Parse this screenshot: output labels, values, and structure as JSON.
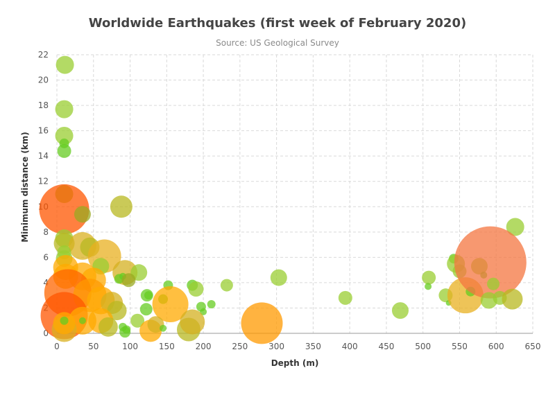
{
  "chart_data": {
    "type": "scatter",
    "title": "Worldwide Earthquakes (first week of February 2020)",
    "subtitle": "Source: US Geological Survey",
    "xlabel": "Depth (m)",
    "ylabel": "Minimum distance (km)",
    "xlim": [
      0,
      650
    ],
    "ylim": [
      0,
      22
    ],
    "xticks": [
      0,
      50,
      100,
      150,
      200,
      250,
      300,
      350,
      400,
      450,
      500,
      550,
      600,
      650
    ],
    "yticks": [
      0,
      2,
      4,
      6,
      8,
      10,
      12,
      14,
      16,
      18,
      20,
      22
    ],
    "grid": true,
    "points": [
      {
        "x": 11,
        "y": 21.2,
        "r": 13,
        "color": "#9acd32"
      },
      {
        "x": 10,
        "y": 17.7,
        "r": 13,
        "color": "#9acd32"
      },
      {
        "x": 10,
        "y": 15.6,
        "r": 13,
        "color": "#9acd32"
      },
      {
        "x": 10,
        "y": 15.0,
        "r": 7,
        "color": "#66cc22"
      },
      {
        "x": 10,
        "y": 14.4,
        "r": 10,
        "color": "#66cc22"
      },
      {
        "x": 626,
        "y": 8.4,
        "r": 13,
        "color": "#9acd32"
      },
      {
        "x": 10,
        "y": 11.0,
        "r": 13,
        "color": "#9acd32"
      },
      {
        "x": 10,
        "y": 9.8,
        "r": 36,
        "color": "#ff5500"
      },
      {
        "x": 35,
        "y": 9.4,
        "r": 12,
        "color": "#99aa22"
      },
      {
        "x": 88,
        "y": 10.0,
        "r": 16,
        "color": "#b8b820"
      },
      {
        "x": 10,
        "y": 7.5,
        "r": 13,
        "color": "#9acd32"
      },
      {
        "x": 10,
        "y": 7.1,
        "r": 15,
        "color": "#b8b820"
      },
      {
        "x": 35,
        "y": 6.9,
        "r": 20,
        "color": "#d9b020"
      },
      {
        "x": 45,
        "y": 6.8,
        "r": 14,
        "color": "#b8b820"
      },
      {
        "x": 10,
        "y": 6.4,
        "r": 10,
        "color": "#9acd32"
      },
      {
        "x": 10,
        "y": 5.9,
        "r": 12,
        "color": "#9acd32"
      },
      {
        "x": 65,
        "y": 6.1,
        "r": 24,
        "color": "#e8b020"
      },
      {
        "x": 60,
        "y": 5.3,
        "r": 12,
        "color": "#9acd32"
      },
      {
        "x": 12,
        "y": 5.2,
        "r": 18,
        "color": "#ffaa00"
      },
      {
        "x": 93,
        "y": 4.8,
        "r": 18,
        "color": "#d4b020"
      },
      {
        "x": 112,
        "y": 4.8,
        "r": 12,
        "color": "#9acd32"
      },
      {
        "x": 12,
        "y": 4.5,
        "r": 18,
        "color": "#ffaa00"
      },
      {
        "x": 35,
        "y": 4.5,
        "r": 20,
        "color": "#ffaa00"
      },
      {
        "x": 50,
        "y": 4.2,
        "r": 18,
        "color": "#ffaa00"
      },
      {
        "x": 85,
        "y": 4.3,
        "r": 7,
        "color": "#66cc22"
      },
      {
        "x": 90,
        "y": 4.5,
        "r": 5,
        "color": "#66cc22"
      },
      {
        "x": 98,
        "y": 4.2,
        "r": 10,
        "color": "#99aa22"
      },
      {
        "x": 152,
        "y": 3.8,
        "r": 7,
        "color": "#66cc22"
      },
      {
        "x": 185,
        "y": 3.8,
        "r": 8,
        "color": "#66cc22"
      },
      {
        "x": 190,
        "y": 3.5,
        "r": 11,
        "color": "#9acd32"
      },
      {
        "x": 232,
        "y": 3.8,
        "r": 9,
        "color": "#9acd32"
      },
      {
        "x": 303,
        "y": 4.4,
        "r": 12,
        "color": "#9acd32"
      },
      {
        "x": 15,
        "y": 3.2,
        "r": 34,
        "color": "#ff6600"
      },
      {
        "x": 45,
        "y": 3.0,
        "r": 24,
        "color": "#ff9900"
      },
      {
        "x": 60,
        "y": 2.6,
        "r": 20,
        "color": "#ffaa00"
      },
      {
        "x": 75,
        "y": 2.4,
        "r": 16,
        "color": "#d4b020"
      },
      {
        "x": 82,
        "y": 1.8,
        "r": 14,
        "color": "#b8b820"
      },
      {
        "x": 123,
        "y": 3.0,
        "r": 9,
        "color": "#66cc22"
      },
      {
        "x": 125,
        "y": 3.0,
        "r": 6,
        "color": "#66cc22"
      },
      {
        "x": 145,
        "y": 2.7,
        "r": 7,
        "color": "#66cc22"
      },
      {
        "x": 155,
        "y": 2.3,
        "r": 26,
        "color": "#ffaa00"
      },
      {
        "x": 122,
        "y": 1.9,
        "r": 9,
        "color": "#66cc22"
      },
      {
        "x": 197,
        "y": 2.1,
        "r": 7,
        "color": "#66cc22"
      },
      {
        "x": 200,
        "y": 1.7,
        "r": 5,
        "color": "#66cc22"
      },
      {
        "x": 211,
        "y": 2.3,
        "r": 6,
        "color": "#66cc22"
      },
      {
        "x": 10,
        "y": 1.4,
        "r": 34,
        "color": "#ff5500"
      },
      {
        "x": 35,
        "y": 1.0,
        "r": 20,
        "color": "#ffaa00"
      },
      {
        "x": 60,
        "y": 1.0,
        "r": 18,
        "color": "#ffaa00"
      },
      {
        "x": 70,
        "y": 0.5,
        "r": 14,
        "color": "#b8b820"
      },
      {
        "x": 10,
        "y": 0.3,
        "r": 18,
        "color": "#d9b020"
      },
      {
        "x": 10,
        "y": 0.8,
        "r": 16,
        "color": "#ffaa00"
      },
      {
        "x": 10,
        "y": 1.0,
        "r": 6,
        "color": "#66cc22"
      },
      {
        "x": 35,
        "y": 1.0,
        "r": 5,
        "color": "#66cc22"
      },
      {
        "x": 90,
        "y": 0.5,
        "r": 6,
        "color": "#66cc22"
      },
      {
        "x": 95,
        "y": 0.3,
        "r": 6,
        "color": "#66cc22"
      },
      {
        "x": 93,
        "y": 0.1,
        "r": 8,
        "color": "#66cc22"
      },
      {
        "x": 110,
        "y": 1.0,
        "r": 10,
        "color": "#9acd32"
      },
      {
        "x": 128,
        "y": 0.2,
        "r": 16,
        "color": "#ffaa00"
      },
      {
        "x": 135,
        "y": 0.7,
        "r": 12,
        "color": "#d4b020"
      },
      {
        "x": 145,
        "y": 0.4,
        "r": 5,
        "color": "#66cc22"
      },
      {
        "x": 180,
        "y": 0.3,
        "r": 17,
        "color": "#b8b820"
      },
      {
        "x": 185,
        "y": 0.9,
        "r": 18,
        "color": "#d4b020"
      },
      {
        "x": 280,
        "y": 0.8,
        "r": 30,
        "color": "#ff9900"
      },
      {
        "x": 394,
        "y": 2.8,
        "r": 10,
        "color": "#9acd32"
      },
      {
        "x": 469,
        "y": 1.8,
        "r": 12,
        "color": "#9acd32"
      },
      {
        "x": 508,
        "y": 4.4,
        "r": 10,
        "color": "#9acd32"
      },
      {
        "x": 507,
        "y": 3.7,
        "r": 5,
        "color": "#66cc22"
      },
      {
        "x": 531,
        "y": 3.0,
        "r": 10,
        "color": "#9acd32"
      },
      {
        "x": 535,
        "y": 2.4,
        "r": 4,
        "color": "#66cc22"
      },
      {
        "x": 542,
        "y": 5.9,
        "r": 7,
        "color": "#66cc22"
      },
      {
        "x": 545,
        "y": 5.5,
        "r": 13,
        "color": "#9acd32"
      },
      {
        "x": 550,
        "y": 4.9,
        "r": 10,
        "color": "#9acd32"
      },
      {
        "x": 558,
        "y": 3.0,
        "r": 26,
        "color": "#e8b020"
      },
      {
        "x": 565,
        "y": 3.3,
        "r": 7,
        "color": "#66cc22"
      },
      {
        "x": 577,
        "y": 5.3,
        "r": 12,
        "color": "#9acd32"
      },
      {
        "x": 583,
        "y": 4.6,
        "r": 5,
        "color": "#66cc22"
      },
      {
        "x": 592,
        "y": 5.6,
        "r": 52,
        "color": "#f47540"
      },
      {
        "x": 596,
        "y": 3.9,
        "r": 9,
        "color": "#9acd32"
      },
      {
        "x": 590,
        "y": 2.6,
        "r": 12,
        "color": "#9acd32"
      },
      {
        "x": 605,
        "y": 2.8,
        "r": 10,
        "color": "#9acd32"
      },
      {
        "x": 622,
        "y": 2.7,
        "r": 15,
        "color": "#b8b820"
      }
    ]
  }
}
